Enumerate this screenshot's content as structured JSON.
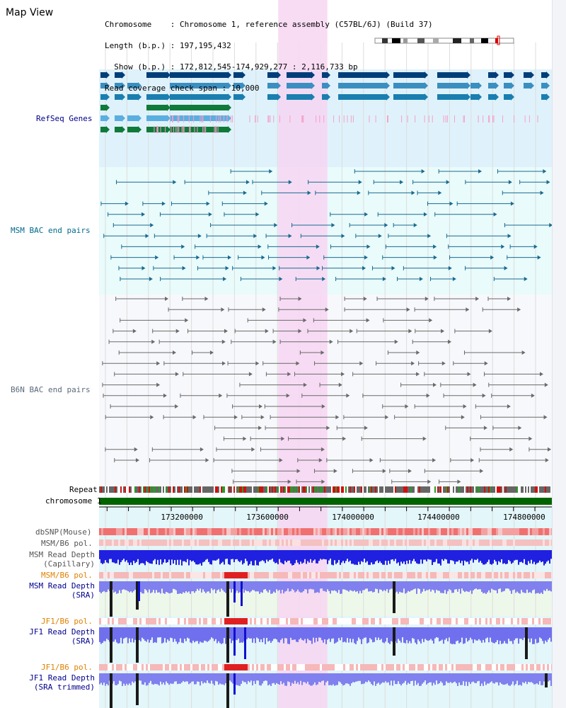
{
  "app": {
    "title": "Map View"
  },
  "info": {
    "chromosome": "Chromosome    : Chromosome 1, reference assembly (C57BL/6J) (Build 37)",
    "length": "Length (b.p.) : 197,195,432",
    "show": "  Show (b.p.) : 172,812,545-174,929,277 : 2,116,733 bp",
    "read_span": "Read coverage check span : 10,000"
  },
  "tracks": {
    "refseq": {
      "label": "RefSeq Genes",
      "color": "#00008b",
      "bg": "#dff2fb"
    },
    "msm_bac": {
      "label": "MSM BAC end pairs",
      "color": "#006a8c",
      "bg": "#e9fbfb"
    },
    "b6n_bac": {
      "label": "B6N BAC end pairs",
      "color": "#5a6a7a",
      "bg": "#f7f8fb"
    },
    "repeat": {
      "label": "Repeat"
    },
    "chromosome": {
      "label": "chromosome 1",
      "color": "#006400"
    },
    "dbsnp": {
      "label": "dbSNP(Mouse)",
      "color": "#555555"
    },
    "msm_b6_pol_1": {
      "label": "MSM/B6 pol.",
      "color": "#555555"
    },
    "msm_read_cap": {
      "label": "MSM Read Depth\n(Capillary)",
      "color": "#555555"
    },
    "msm_b6_pol_2": {
      "label": "MSM/B6 pol.",
      "color": "#e08000"
    },
    "msm_read_sra": {
      "label": "MSM Read Depth\n(SRA)",
      "color": "#00008b"
    },
    "jf1_b6_pol_1": {
      "label": "JF1/B6 pol.",
      "color": "#e08000"
    },
    "jf1_read_sra": {
      "label": "JF1 Read Depth\n(SRA)",
      "color": "#00008b"
    },
    "jf1_b6_pol_2": {
      "label": "JF1/B6 pol.",
      "color": "#e08000"
    },
    "jf1_read_trim": {
      "label": "JF1 Read Depth\n(SRA trimmed)",
      "color": "#00008b"
    }
  },
  "axis": {
    "ticks": [
      "173200000",
      "173600000",
      "174000000",
      "174400000",
      "174800000"
    ],
    "tick_values": [
      173200000,
      173600000,
      174000000,
      174400000,
      174800000
    ],
    "view_start": 172812545,
    "view_end": 174929277
  },
  "highlight": {
    "start": 173650000,
    "end": 173880000,
    "color": "#f7d6f2"
  }
}
